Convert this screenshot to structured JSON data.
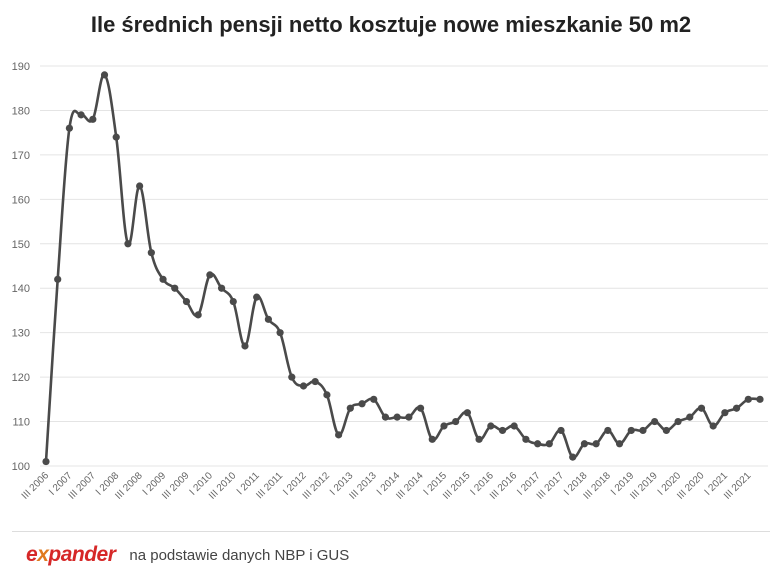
{
  "title": "Ile średnich pensji netto kosztuje nowe mieszkanie 50 m2",
  "footer": {
    "logo_text": "expander",
    "source": "na podstawie danych NBP i GUS"
  },
  "colors": {
    "line": "#4a4a4a",
    "brand_red": "#d62828",
    "brand_orange": "#e07a1f"
  },
  "chart_data": {
    "type": "line",
    "title": "Ile średnich pensji netto kosztuje nowe mieszkanie 50 m2",
    "xlabel": "",
    "ylabel": "",
    "ylim": [
      100,
      190
    ],
    "yticks": [
      100,
      110,
      120,
      130,
      140,
      150,
      160,
      170,
      180,
      190
    ],
    "grid": true,
    "x_tick_labels": [
      "III 2006",
      "I 2007",
      "III 2007",
      "I 2008",
      "III 2008",
      "I 2009",
      "III 2009",
      "I 2010",
      "III 2010",
      "I 2011",
      "III 2011",
      "I 2012",
      "III 2012",
      "I 2013",
      "III 2013",
      "I 2014",
      "III 2014",
      "I 2015",
      "III 2015",
      "I 2016",
      "III 2016",
      "I 2017",
      "III 2017",
      "I 2018",
      "III 2018",
      "I 2019",
      "III 2019",
      "I 2020",
      "III 2020",
      "I 2021",
      "III 2021"
    ],
    "values": [
      101,
      142,
      176,
      179,
      178,
      188,
      174,
      150,
      163,
      148,
      142,
      140,
      137,
      134,
      143,
      140,
      137,
      127,
      138,
      133,
      130,
      120,
      118,
      119,
      116,
      107,
      113,
      114,
      115,
      111,
      111,
      111,
      113,
      106,
      109,
      110,
      112,
      106,
      109,
      108,
      109,
      106,
      105,
      105,
      108,
      102,
      105,
      105,
      108,
      105,
      108,
      108,
      110,
      108,
      110,
      111,
      113,
      109,
      112,
      113,
      115,
      115
    ]
  }
}
